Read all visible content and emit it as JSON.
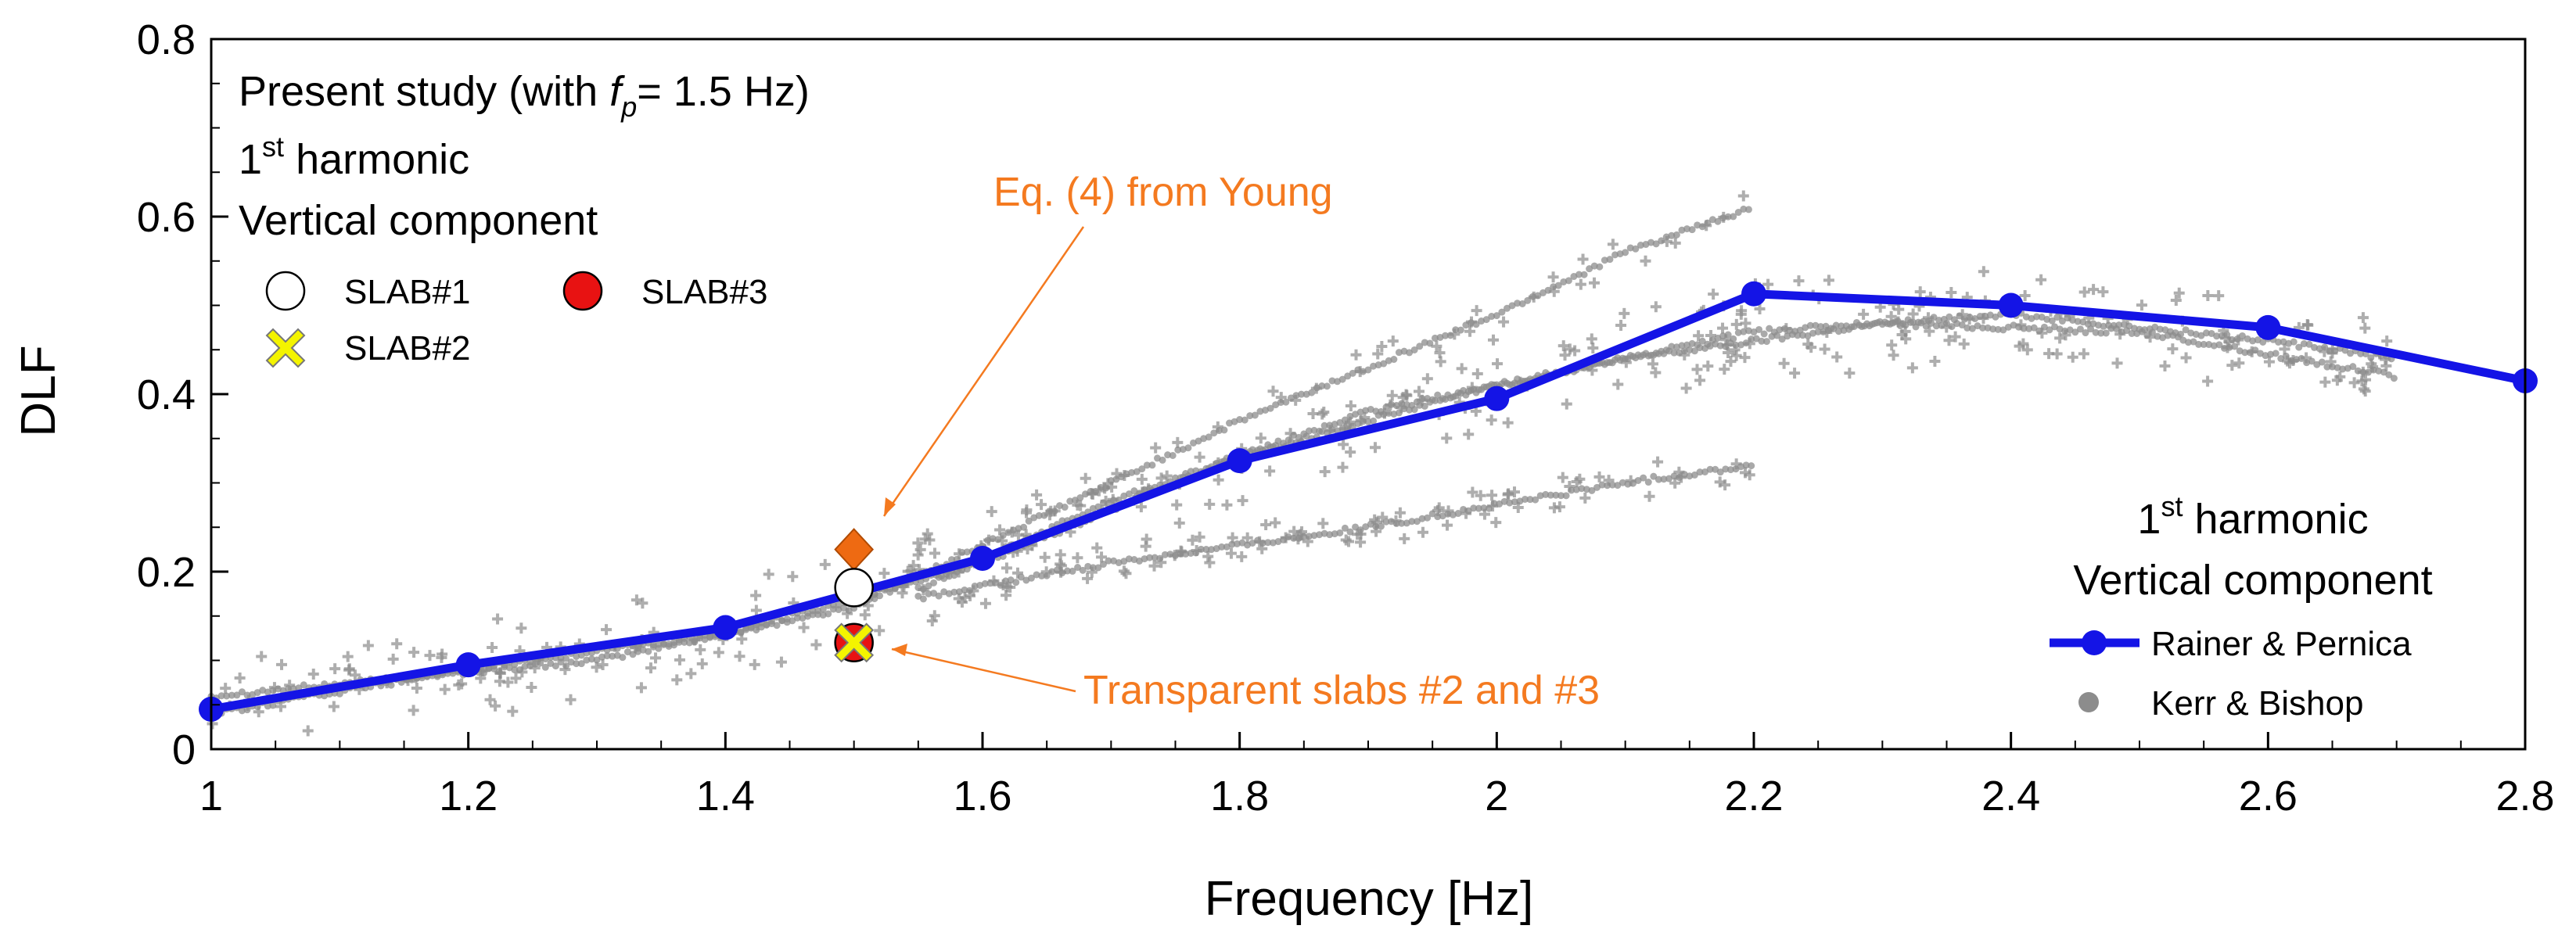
{
  "chart_data": {
    "type": "scatter",
    "xlabel": "Frequency  [Hz]",
    "ylabel": "DLF",
    "xlim": [
      1,
      2.8
    ],
    "ylim": [
      0,
      0.8
    ],
    "x_ticks": [
      "1",
      "1.2",
      "1.4",
      "1.6",
      "1.8",
      "2",
      "2.2",
      "2.4",
      "2.6",
      "2.8"
    ],
    "y_ticks": [
      "0",
      "0.2",
      "0.4",
      "0.6",
      "0.8"
    ],
    "grid": false,
    "legend_left": {
      "line1_prefix": "Present study (with ",
      "line1_var": "f",
      "line1_sub": "p",
      "line1_suffix": "= 1.5 Hz)",
      "line2_main": "1",
      "line2_sup": "st",
      "line2_rest": " harmonic",
      "line3": "Vertical component",
      "slab1": "SLAB#1",
      "slab2": "SLAB#2",
      "slab3": "SLAB#3"
    },
    "legend_right": {
      "line1_main": "1",
      "line1_sup": "st",
      "line1_rest": " harmonic",
      "line2": "Vertical component",
      "series1": "Rainer & Pernica",
      "series2": "Kerr & Bishop"
    },
    "annotations": {
      "young": "Eq. (4) from Young",
      "transparent": "Transparent slabs #2 and #3"
    },
    "series": [
      {
        "name": "Rainer & Pernica",
        "color": "#1414e6",
        "x": [
          1.0,
          1.2,
          1.4,
          1.6,
          1.8,
          2.0,
          2.2,
          2.4,
          2.6,
          2.8
        ],
        "y": [
          0.045,
          0.095,
          0.137,
          0.215,
          0.325,
          0.395,
          0.513,
          0.5,
          0.475,
          0.415
        ]
      },
      {
        "name": "Kerr & Bishop",
        "color": "#8c8c8c",
        "bands": [
          {
            "x": [
              1.0,
              1.3,
              1.5,
              1.6,
              1.8,
              2.0,
              2.1,
              2.2
            ],
            "y": [
              0.06,
              0.1,
              0.16,
              0.23,
              0.37,
              0.49,
              0.56,
              0.61
            ]
          },
          {
            "x": [
              1.55,
              1.7,
              1.9,
              2.1,
              2.3,
              2.5,
              2.7
            ],
            "y": [
              0.18,
              0.28,
              0.38,
              0.44,
              0.48,
              0.47,
              0.42
            ]
          },
          {
            "x": [
              1.55,
              1.7,
              1.9,
              2.1,
              2.2
            ],
            "y": [
              0.17,
              0.21,
              0.25,
              0.3,
              0.32
            ]
          },
          {
            "x": [
              1.0,
              1.2,
              1.4,
              1.6,
              1.8,
              2.0,
              2.2,
              2.4,
              2.6,
              2.7
            ],
            "y": [
              0.04,
              0.09,
              0.13,
              0.21,
              0.33,
              0.41,
              0.47,
              0.49,
              0.46,
              0.44
            ]
          }
        ]
      }
    ],
    "points": [
      {
        "name": "SLAB#1",
        "x": 1.5,
        "y": 0.182,
        "marker": "circle",
        "fill": "#ffffff"
      },
      {
        "name": "SLAB#2",
        "x": 1.5,
        "y": 0.12,
        "marker": "x",
        "fill": "#f4f400"
      },
      {
        "name": "SLAB#3",
        "x": 1.5,
        "y": 0.12,
        "marker": "circle",
        "fill": "#e81212"
      },
      {
        "name": "Eq. (4) from Young",
        "x": 1.5,
        "y": 0.225,
        "marker": "diamond",
        "fill": "#ee6a12"
      }
    ]
  }
}
